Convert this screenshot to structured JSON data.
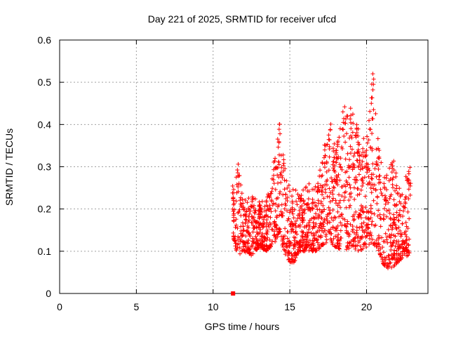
{
  "chart_data": {
    "type": "scatter",
    "title": "Day 221 of 2025, SRMTID for receiver ufcd",
    "xlabel": "GPS time / hours",
    "ylabel": "SRMTID / TECUs",
    "xlim": [
      0,
      24
    ],
    "ylim": [
      0,
      0.6
    ],
    "x_ticks": [
      0,
      5,
      10,
      15,
      20
    ],
    "y_ticks": [
      0,
      0.1,
      0.2,
      0.3,
      0.4,
      0.5,
      0.6
    ],
    "x_tick_labels": [
      "0",
      "5",
      "10",
      "15",
      "20"
    ],
    "y_tick_labels": [
      "0",
      "0.1",
      "0.2",
      "0.3",
      "0.4",
      "0.5",
      "0.6"
    ],
    "grid": true,
    "marker": "+",
    "series_color": "#ff0000",
    "zero_marker": {
      "x": 11.3,
      "y": 0.0
    },
    "data_summary": "Dense scatter between about 11.3 h and 22.8 h; most values 0.1–0.3 TECU with peaks near 14.2 h (0.41), 17.5 h (0.41), 19 h (0.44) and 20.5 h (0.53).",
    "envelope": [
      {
        "x": 11.3,
        "lo": 0.13,
        "hi": 0.26
      },
      {
        "x": 11.6,
        "lo": 0.09,
        "hi": 0.31
      },
      {
        "x": 12.0,
        "lo": 0.1,
        "hi": 0.22
      },
      {
        "x": 12.5,
        "lo": 0.09,
        "hi": 0.23
      },
      {
        "x": 13.0,
        "lo": 0.11,
        "hi": 0.22
      },
      {
        "x": 13.5,
        "lo": 0.1,
        "hi": 0.22
      },
      {
        "x": 14.0,
        "lo": 0.12,
        "hi": 0.33
      },
      {
        "x": 14.3,
        "lo": 0.14,
        "hi": 0.41
      },
      {
        "x": 14.8,
        "lo": 0.08,
        "hi": 0.27
      },
      {
        "x": 15.2,
        "lo": 0.07,
        "hi": 0.25
      },
      {
        "x": 15.7,
        "lo": 0.1,
        "hi": 0.24
      },
      {
        "x": 16.2,
        "lo": 0.1,
        "hi": 0.26
      },
      {
        "x": 16.8,
        "lo": 0.1,
        "hi": 0.26
      },
      {
        "x": 17.3,
        "lo": 0.12,
        "hi": 0.36
      },
      {
        "x": 17.6,
        "lo": 0.12,
        "hi": 0.41
      },
      {
        "x": 18.0,
        "lo": 0.11,
        "hi": 0.34
      },
      {
        "x": 18.5,
        "lo": 0.1,
        "hi": 0.45
      },
      {
        "x": 19.0,
        "lo": 0.11,
        "hi": 0.44
      },
      {
        "x": 19.5,
        "lo": 0.1,
        "hi": 0.39
      },
      {
        "x": 20.0,
        "lo": 0.11,
        "hi": 0.36
      },
      {
        "x": 20.4,
        "lo": 0.12,
        "hi": 0.53
      },
      {
        "x": 20.8,
        "lo": 0.1,
        "hi": 0.34
      },
      {
        "x": 21.2,
        "lo": 0.06,
        "hi": 0.27
      },
      {
        "x": 21.7,
        "lo": 0.06,
        "hi": 0.32
      },
      {
        "x": 22.2,
        "lo": 0.08,
        "hi": 0.25
      },
      {
        "x": 22.8,
        "lo": 0.09,
        "hi": 0.3
      }
    ]
  }
}
